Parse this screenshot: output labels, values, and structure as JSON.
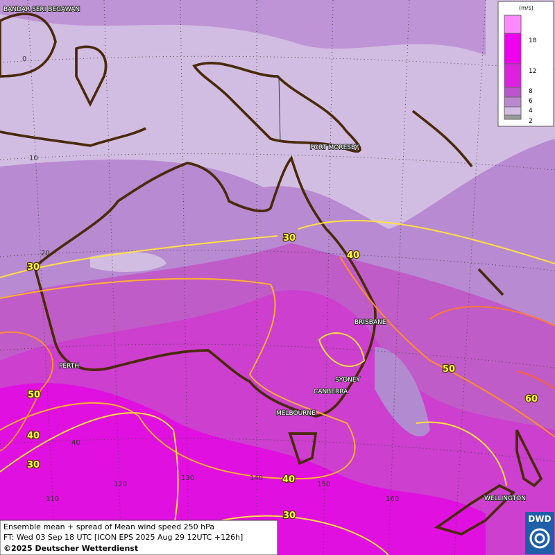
{
  "map": {
    "cities": [
      "BANDAR SERI BEGAWAN",
      "PORT MORESBY",
      "BRISBANE",
      "PERTH",
      "SYDNEY",
      "CANBERRA",
      "MELBOURNE",
      "WELLINGTON"
    ],
    "latitude_labels": [
      "0",
      "10",
      "20",
      "40"
    ],
    "longitude_labels": [
      "110",
      "120",
      "130",
      "140",
      "150",
      "160"
    ],
    "contour_labels": [
      "30",
      "30",
      "40",
      "50",
      "40",
      "30",
      "40",
      "30",
      "50",
      "60"
    ],
    "legend": {
      "unit": "(m/s)",
      "ticks": [
        "18",
        "12",
        "8",
        "6",
        "4",
        "2"
      ]
    },
    "footer": [
      "Ensemble mean + spread of Mean wind speed 250 hPa",
      "FT: Wed 03 Sep 18 UTC [ICON EPS 2025 Aug 29 12UTC +126h]",
      "©2025 Deutscher Wetterdienst"
    ],
    "logo": "DWD"
  }
}
